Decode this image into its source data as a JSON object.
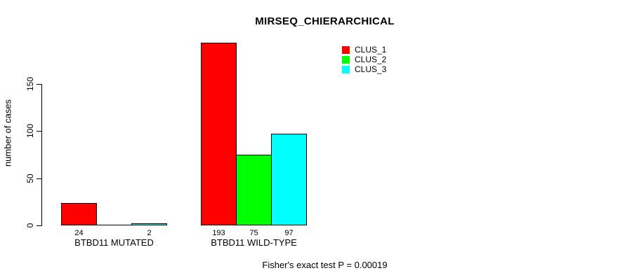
{
  "chart_data": {
    "type": "bar",
    "title": "MIRSEQ_CHIERARCHICAL",
    "ylabel": "number of cases",
    "xlabel": "",
    "categories": [
      "BTBD11 MUTATED",
      "BTBD11 WILD-TYPE"
    ],
    "series": [
      {
        "name": "CLUS_1",
        "color": "#ff0000",
        "values": [
          24,
          193
        ]
      },
      {
        "name": "CLUS_2",
        "color": "#00ff00",
        "values": [
          0,
          75
        ]
      },
      {
        "name": "CLUS_3",
        "color": "#00ffff",
        "values": [
          2,
          97
        ]
      }
    ],
    "value_labels": [
      [
        "24",
        "",
        "2"
      ],
      [
        "193",
        "75",
        "97"
      ]
    ],
    "ylim": [
      0,
      150
    ],
    "yticks": [
      "0",
      "50",
      "100",
      "150"
    ],
    "grid": false,
    "legend_position": "top-right",
    "legend": [
      {
        "label": "CLUS_1",
        "color": "#ff0000"
      },
      {
        "label": "CLUS_2",
        "color": "#00ff00"
      },
      {
        "label": "CLUS_3",
        "color": "#00ffff"
      }
    ],
    "annotation": "Fisher's exact test P = 0.00019"
  },
  "colors": {
    "axis": "#000000",
    "text": "#000000",
    "background": "#ffffff"
  }
}
